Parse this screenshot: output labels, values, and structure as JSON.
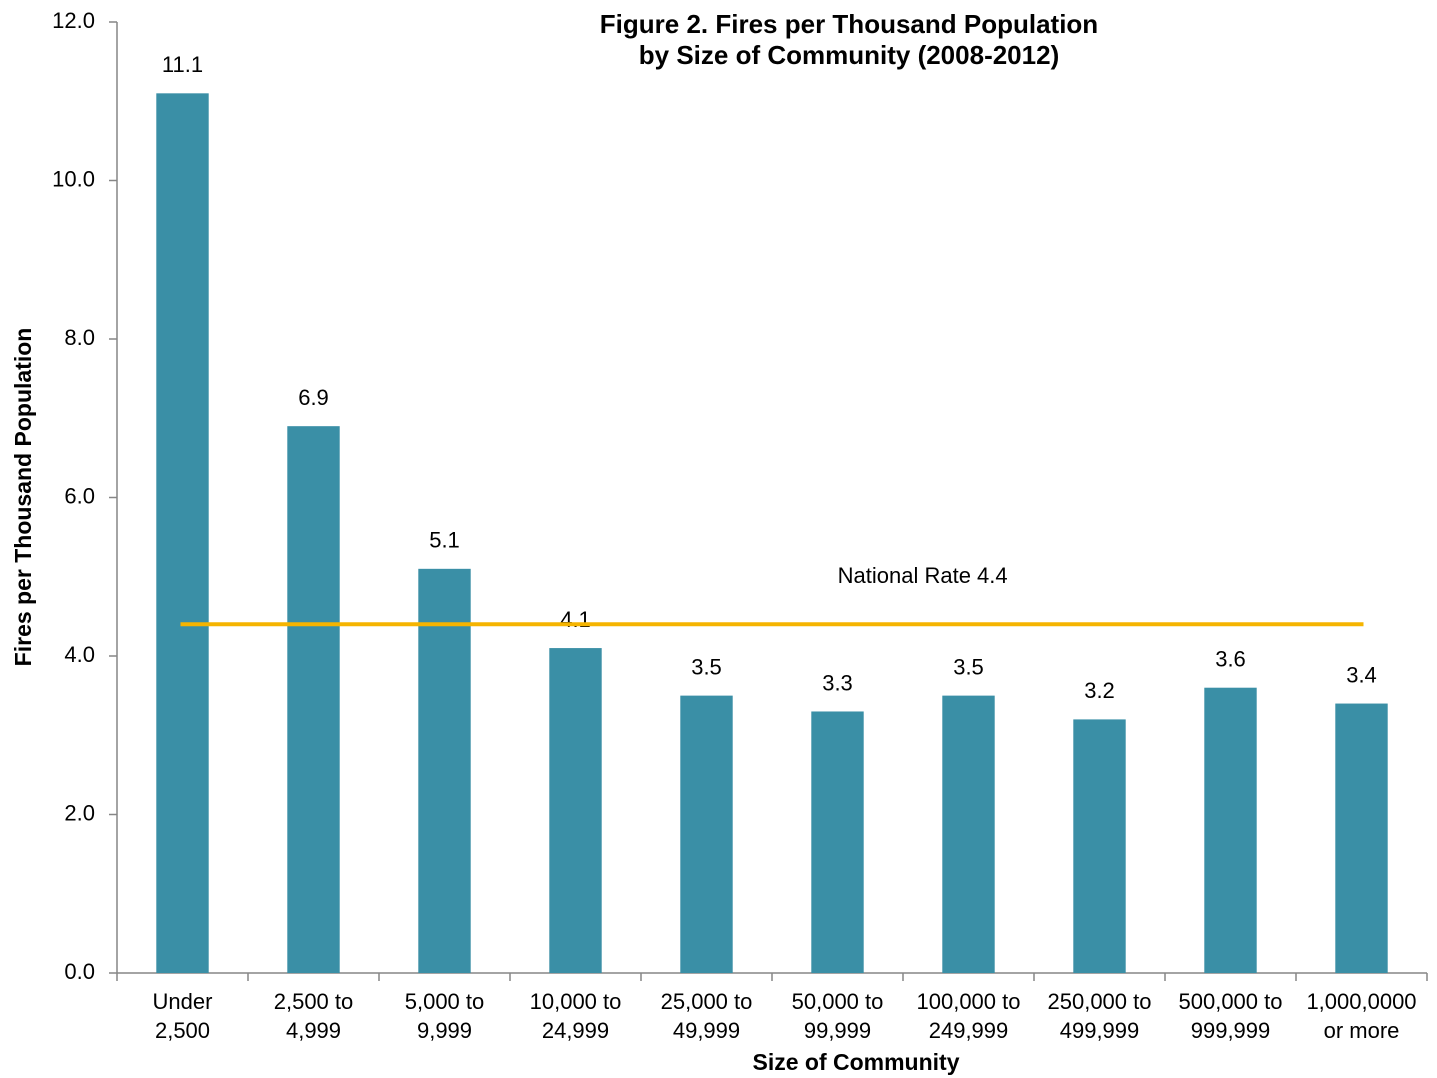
{
  "chart_data": {
    "type": "bar",
    "title": "Figure 2.  Fires per Thousand Population\nby Size of Community (2008-2012)",
    "x_label": "Size of Community",
    "y_label": "Fires per Thousand Population",
    "categories": [
      "Under\n2,500",
      "2,500 to\n4,999",
      "5,000 to\n9,999",
      "10,000 to\n24,999",
      "25,000 to\n49,999",
      "50,000 to\n99,999",
      "100,000 to\n249,999",
      "250,000 to\n499,999",
      "500,000 to\n999,999",
      "1,000,0000\nor more"
    ],
    "values": [
      11.1,
      6.9,
      5.1,
      4.1,
      3.5,
      3.3,
      3.5,
      3.2,
      3.6,
      3.4
    ],
    "color": "#3a8fa6",
    "ylim": [
      0,
      12
    ],
    "yticks": [
      {
        "value": 0,
        "label": "0.0"
      },
      {
        "value": 2,
        "label": "2.0"
      },
      {
        "value": 4,
        "label": "4.0"
      },
      {
        "value": 6,
        "label": "6.0"
      },
      {
        "value": 8,
        "label": "8.0"
      },
      {
        "value": 10,
        "label": "10.0"
      },
      {
        "value": 12,
        "label": "12.0"
      }
    ],
    "reference_line": {
      "value": 4.4,
      "label": "National Rate 4.4",
      "color": "#f5b400"
    }
  }
}
